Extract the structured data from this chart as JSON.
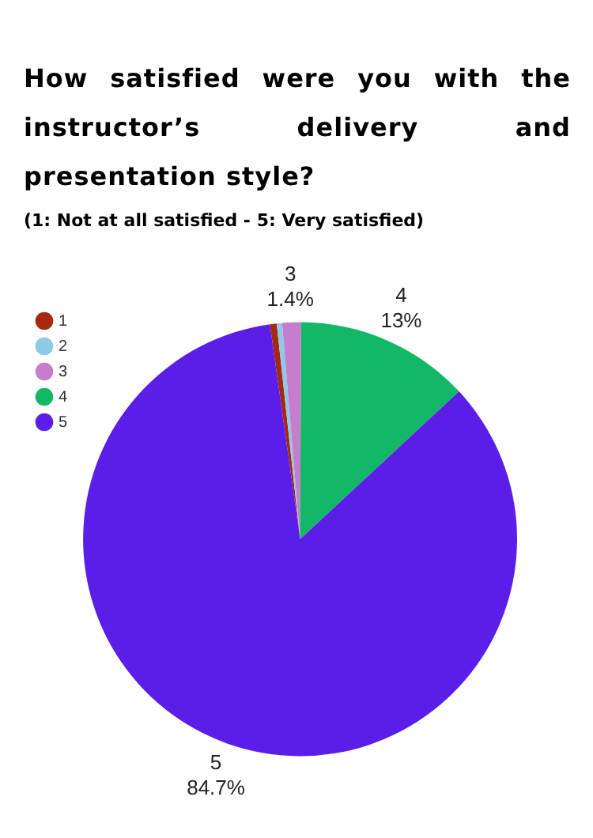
{
  "chart_data": {
    "type": "pie",
    "title": "How satisfied were you with the instructor’s delivery and presentation style?",
    "subtitle": "(1: Not at all satisfied - 5: Very satisfied)",
    "categories": [
      "1",
      "2",
      "3",
      "4",
      "5"
    ],
    "values": [
      0.5,
      0.4,
      1.4,
      13,
      84.7
    ],
    "colors": [
      "#a8280f",
      "#8ecae6",
      "#c77dce",
      "#12b866",
      "#5b1ee8"
    ],
    "value_labels": [
      null,
      null,
      "1.4%",
      "13%",
      "84.7%"
    ],
    "legend": "top left"
  }
}
